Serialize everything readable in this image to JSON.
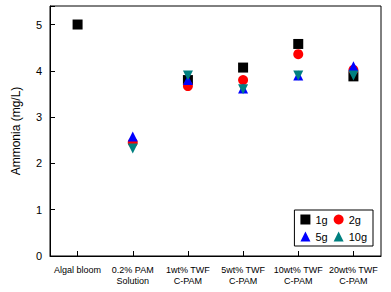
{
  "chart_data": {
    "type": "scatter",
    "y_label": "Ammonia (mg/L)",
    "categories": [
      "Algal bloom",
      "0.2% PAM\nSolution",
      "1wt% TWF\nC-PAM",
      "5wt% TWF\nC-PAM",
      "10wt% TWF\nC-PAM",
      "20wt% TWF\nC-PAM"
    ],
    "series": [
      {
        "name": "1g",
        "color": "#000000",
        "marker": "square",
        "values": [
          5.0,
          null,
          3.8,
          4.07,
          4.58,
          3.88
        ]
      },
      {
        "name": "2g",
        "color": "#ff0000",
        "marker": "circle",
        "values": [
          null,
          2.45,
          3.67,
          3.8,
          4.36,
          4.02
        ]
      },
      {
        "name": "5g",
        "color": "#0000ff",
        "marker": "triangle-up",
        "values": [
          null,
          2.58,
          3.8,
          3.62,
          3.9,
          4.1
        ]
      },
      {
        "name": "10g",
        "color": "#008080",
        "marker": "triangle-down",
        "values": [
          null,
          2.32,
          3.9,
          3.6,
          3.9,
          3.9
        ]
      }
    ],
    "ylim": [
      0,
      5.4
    ],
    "yticks": [
      0,
      1,
      2,
      3,
      4,
      5
    ],
    "legend": "lower right",
    "grid": false
  }
}
